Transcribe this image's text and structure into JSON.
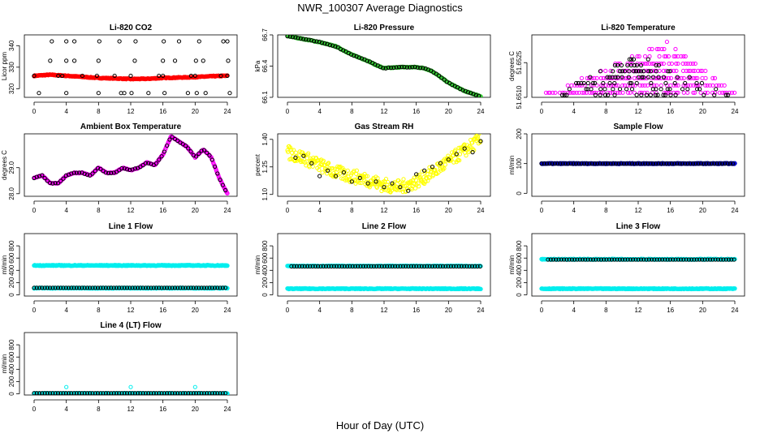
{
  "figure": {
    "title": "NWR_100307  Average Diagnostics",
    "xlabel": "Hour of Day (UTC)",
    "x_ticks": [
      0,
      4,
      8,
      12,
      16,
      20,
      24
    ]
  },
  "colors": {
    "black": "#000000",
    "red": "#ff0000",
    "green": "#33cc33",
    "magenta": "#ff00ff",
    "yellow": "#ffff00",
    "blue": "#0000cc",
    "cyan": "#00eeee"
  },
  "chart_data": [
    {
      "type": "scatter",
      "title": "Li-820 CO2",
      "ylabel": "Licor ppm",
      "xlim": [
        0,
        24
      ],
      "ylim": [
        316,
        345
      ],
      "y_ticks": [
        320,
        330,
        340
      ],
      "series": [
        {
          "color": "red",
          "style": "dense",
          "x": [
            0,
            2,
            4,
            6,
            8,
            10,
            12,
            14,
            16,
            18,
            20,
            22,
            24
          ],
          "y": [
            326,
            326.5,
            326,
            325.5,
            325,
            324.8,
            324.5,
            324.6,
            325,
            325.2,
            325.4,
            325.8,
            326
          ]
        },
        {
          "color": "black",
          "style": "sparse",
          "x": [
            2.2,
            4,
            5,
            8.1,
            10.6,
            12.6,
            16.1,
            18,
            20.5,
            23.5,
            24
          ],
          "y": [
            342,
            342,
            342,
            342,
            342,
            342,
            342,
            342,
            342,
            342,
            342
          ]
        },
        {
          "color": "black",
          "style": "sparse",
          "x": [
            2,
            4,
            5,
            8,
            12.5,
            16,
            17.5,
            20.1,
            21,
            24.1
          ],
          "y": [
            333,
            333,
            333,
            333,
            333,
            333,
            333,
            333,
            333,
            333
          ]
        },
        {
          "color": "black",
          "style": "sparse",
          "x": [
            0,
            3,
            3.5,
            6,
            7.8,
            10,
            12,
            15.5,
            16,
            19.5,
            20,
            23.2,
            24
          ],
          "y": [
            326,
            326,
            326,
            326,
            326,
            326,
            326,
            326,
            326,
            326,
            326,
            326,
            326
          ]
        },
        {
          "color": "black",
          "style": "sparse",
          "x": [
            0.6,
            4,
            8,
            10.8,
            11.2,
            12.1,
            14.2,
            16.2,
            19.1,
            20.2,
            21.3,
            24.3
          ],
          "y": [
            318,
            318,
            318,
            318,
            318,
            318,
            318,
            318,
            318,
            318,
            318,
            318
          ]
        }
      ]
    },
    {
      "type": "scatter",
      "title": "Li-820 Pressure",
      "ylabel": "kPa",
      "xlim": [
        0,
        24
      ],
      "ylim": [
        66.1,
        66.7
      ],
      "y_ticks": [
        66.1,
        66.4,
        66.7
      ],
      "series": [
        {
          "color": "green",
          "style": "dense",
          "x": [
            0,
            2,
            4,
            6,
            8,
            10,
            11,
            12,
            14,
            16,
            17,
            18,
            20,
            22,
            24
          ],
          "y": [
            66.69,
            66.66,
            66.63,
            66.59,
            66.51,
            66.45,
            66.41,
            66.38,
            66.39,
            66.39,
            66.38,
            66.35,
            66.24,
            66.16,
            66.11
          ]
        },
        {
          "color": "black",
          "style": "overlay",
          "x": [
            0,
            2,
            4,
            6,
            8,
            10,
            11,
            12,
            14,
            16,
            17,
            18,
            20,
            22,
            24
          ],
          "y": [
            66.69,
            66.66,
            66.63,
            66.59,
            66.51,
            66.45,
            66.41,
            66.38,
            66.39,
            66.39,
            66.38,
            66.35,
            66.24,
            66.16,
            66.11
          ]
        }
      ]
    },
    {
      "type": "scatter",
      "title": "Li-820 Temperature",
      "ylabel": "degrees C",
      "xlim": [
        0,
        24
      ],
      "ylim": [
        51.651,
        51.6537
      ],
      "y_ticks": [
        51.651,
        51.6525
      ],
      "y_tick_labels": [
        "51.6510",
        "51.6525"
      ],
      "series": [
        {
          "color": "magenta",
          "style": "levels",
          "x": [
            0.5,
            15.5,
            24
          ],
          "y": [
            51.6512,
            51.6534,
            51.6512
          ]
        },
        {
          "color": "black",
          "style": "levels",
          "x": [
            1,
            12,
            23.5
          ],
          "y": [
            51.6511,
            51.6529,
            51.6511
          ]
        }
      ]
    },
    {
      "type": "scatter",
      "title": "Ambient Box Temperature",
      "ylabel": "degrees C",
      "xlim": [
        0,
        24
      ],
      "ylim": [
        27.9,
        30.3
      ],
      "y_ticks": [
        28.0,
        29.0
      ],
      "y_tick_labels": [
        "28.0",
        "29.0"
      ],
      "series": [
        {
          "color": "magenta",
          "style": "dense",
          "x": [
            0,
            1,
            2,
            3,
            4,
            5,
            6,
            7,
            8,
            9,
            10,
            11,
            12,
            13,
            14,
            15,
            16,
            17,
            18,
            19,
            20,
            21,
            22,
            23,
            24
          ],
          "y": [
            28.6,
            28.7,
            28.4,
            28.4,
            28.7,
            28.8,
            28.8,
            28.7,
            29.0,
            28.8,
            28.8,
            29.0,
            28.9,
            29.0,
            29.2,
            29.1,
            29.5,
            30.2,
            30.0,
            29.8,
            29.4,
            29.7,
            29.4,
            28.6,
            28.0
          ]
        },
        {
          "color": "black",
          "style": "overlay",
          "x": [
            0,
            1,
            2,
            3,
            4,
            5,
            6,
            7,
            8,
            9,
            10,
            11,
            12,
            13,
            14,
            15,
            16,
            17,
            18,
            19,
            20,
            21,
            22,
            23,
            24
          ],
          "y": [
            28.6,
            28.7,
            28.4,
            28.4,
            28.7,
            28.8,
            28.8,
            28.7,
            29.0,
            28.8,
            28.8,
            29.0,
            28.9,
            29.0,
            29.2,
            29.1,
            29.5,
            30.2,
            30.0,
            29.8,
            29.4,
            29.7,
            29.4,
            28.6,
            28.0
          ]
        }
      ]
    },
    {
      "type": "scatter",
      "title": "Gas Stream RH",
      "ylabel": "percent",
      "xlim": [
        0,
        24
      ],
      "ylim": [
        1.09,
        1.43
      ],
      "y_ticks": [
        1.1,
        1.25,
        1.4
      ],
      "y_tick_labels": [
        "1.10",
        "1.25",
        "1.40"
      ],
      "series": [
        {
          "color": "yellow",
          "style": "noisy",
          "x": [
            0,
            2,
            4,
            6,
            8,
            10,
            12,
            14,
            16,
            18,
            20,
            22,
            24
          ],
          "y": [
            1.33,
            1.3,
            1.26,
            1.22,
            1.2,
            1.18,
            1.15,
            1.14,
            1.17,
            1.22,
            1.28,
            1.34,
            1.4
          ]
        },
        {
          "color": "black",
          "style": "sparse",
          "x": [
            1,
            2,
            3,
            4,
            5,
            6,
            7,
            8,
            9,
            10,
            11,
            12,
            13,
            14,
            15,
            16,
            17,
            18,
            19,
            20,
            21,
            22,
            23,
            24
          ],
          "y": [
            1.3,
            1.31,
            1.27,
            1.2,
            1.23,
            1.2,
            1.22,
            1.17,
            1.19,
            1.16,
            1.17,
            1.14,
            1.16,
            1.14,
            1.12,
            1.21,
            1.23,
            1.25,
            1.27,
            1.29,
            1.32,
            1.35,
            1.33,
            1.39
          ]
        }
      ]
    },
    {
      "type": "scatter",
      "title": "Sample Flow",
      "ylabel": "ml/min",
      "xlim": [
        0,
        24
      ],
      "ylim": [
        -10,
        200
      ],
      "y_ticks": [
        0,
        100,
        200
      ],
      "series": [
        {
          "color": "blue",
          "style": "dense",
          "x": [
            0,
            24
          ],
          "y": [
            100,
            100
          ]
        },
        {
          "color": "black",
          "style": "sparse-line",
          "x": [
            0,
            24
          ],
          "y": [
            100,
            100
          ]
        }
      ]
    },
    {
      "type": "scatter",
      "title": "Line 1 Flow",
      "ylabel": "ml/min",
      "xlim": [
        0,
        24
      ],
      "ylim": [
        -20,
        1000
      ],
      "y_ticks": [
        0,
        200,
        400,
        600,
        800
      ],
      "series": [
        {
          "color": "cyan",
          "style": "dense",
          "x": [
            0,
            24
          ],
          "y": [
            480,
            480
          ]
        },
        {
          "color": "cyan",
          "style": "dense",
          "x": [
            0,
            24
          ],
          "y": [
            110,
            110
          ]
        },
        {
          "color": "black",
          "style": "sparse-line",
          "x": [
            0,
            24
          ],
          "y": [
            115,
            115
          ]
        }
      ]
    },
    {
      "type": "scatter",
      "title": "Line 2 Flow",
      "ylabel": "ml/min",
      "xlim": [
        0,
        24
      ],
      "ylim": [
        -20,
        1000
      ],
      "y_ticks": [
        0,
        200,
        400,
        600,
        800
      ],
      "series": [
        {
          "color": "cyan",
          "style": "dense",
          "x": [
            0,
            24
          ],
          "y": [
            100,
            100
          ]
        },
        {
          "color": "cyan",
          "style": "dense",
          "x": [
            0,
            24
          ],
          "y": [
            470,
            470
          ]
        },
        {
          "color": "black",
          "style": "sparse-line",
          "x": [
            0.5,
            24
          ],
          "y": [
            465,
            465
          ]
        }
      ]
    },
    {
      "type": "scatter",
      "title": "Line 3 Flow",
      "ylabel": "ml/min",
      "xlim": [
        0,
        24
      ],
      "ylim": [
        -20,
        1000
      ],
      "y_ticks": [
        0,
        200,
        400,
        600,
        800
      ],
      "series": [
        {
          "color": "cyan",
          "style": "dense",
          "x": [
            0,
            24
          ],
          "y": [
            100,
            100
          ]
        },
        {
          "color": "cyan",
          "style": "dense",
          "x": [
            0,
            24
          ],
          "y": [
            580,
            580
          ]
        },
        {
          "color": "black",
          "style": "sparse-line",
          "x": [
            0.8,
            24
          ],
          "y": [
            575,
            575
          ]
        }
      ]
    },
    {
      "type": "scatter",
      "title": "Line 4 (LT) Flow",
      "ylabel": "ml/min",
      "xlim": [
        0,
        24
      ],
      "ylim": [
        -20,
        1000
      ],
      "y_ticks": [
        0,
        200,
        400,
        600,
        800
      ],
      "series": [
        {
          "color": "cyan",
          "style": "dense",
          "x": [
            0,
            24
          ],
          "y": [
            5,
            5
          ]
        },
        {
          "color": "black",
          "style": "sparse-line",
          "x": [
            0,
            24
          ],
          "y": [
            10,
            10
          ]
        },
        {
          "color": "cyan",
          "style": "sparse",
          "x": [
            4,
            12,
            20
          ],
          "y": [
            110,
            110,
            110
          ]
        }
      ]
    }
  ]
}
